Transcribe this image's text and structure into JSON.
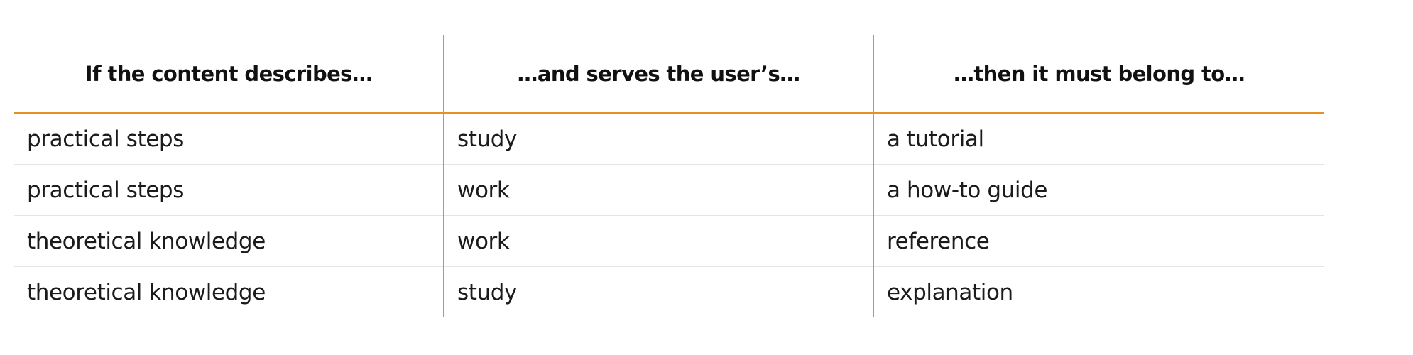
{
  "table": {
    "headers": [
      "If the content describes…",
      "…and serves the user’s…",
      "…then it must belong to…"
    ],
    "rows": [
      [
        "practical steps",
        "study",
        "a tutorial"
      ],
      [
        "practical steps",
        "work",
        "a how-to guide"
      ],
      [
        "theoretical knowledge",
        "work",
        "reference"
      ],
      [
        "theoretical knowledge",
        "study",
        "explanation"
      ]
    ]
  },
  "colors": {
    "accent": "#e8901e",
    "row_divider": "#e4e4e4",
    "text": "#1b1b1b"
  }
}
